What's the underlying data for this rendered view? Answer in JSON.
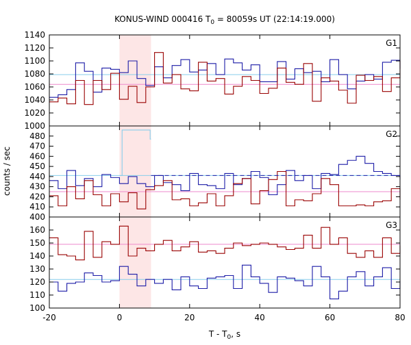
{
  "chart_data": {
    "type": "line",
    "title": "KONUS-WIND 000416 T",
    "title_sub": "0",
    "title_rest": " = 80059s UT (22:14:19.000)",
    "xlabel": "T - T",
    "xlabel_sub": "0",
    "xlabel_rest": ", s",
    "ylabel": "counts / sec",
    "xlim": [
      -20,
      80
    ],
    "xticks": [
      -20,
      0,
      20,
      40,
      60,
      80
    ],
    "highlight_x": [
      0,
      9
    ],
    "colors": {
      "blue": "#1a1aa6",
      "red": "#990000",
      "blue_bg": "#87ceeb",
      "red_bg": "#ee88cc",
      "highlight": "#fde6e6"
    },
    "panels": [
      {
        "label": "G1",
        "ylim": [
          1000,
          1140
        ],
        "yticks": [
          1000,
          1020,
          1040,
          1060,
          1080,
          1100,
          1120,
          1140
        ],
        "blue_bg": 1079,
        "red_bg": 1064,
        "series": [
          {
            "color": "blue",
            "x": [
              -20,
              -17.5,
              -15,
              -12.5,
              -10,
              -7.5,
              -5,
              -2.5,
              0,
              2.5,
              5,
              7.5,
              10,
              12.5,
              15,
              17.5,
              20,
              22.5,
              25,
              27.5,
              30,
              32.5,
              35,
              37.5,
              40,
              42.5,
              45,
              47.5,
              50,
              52.5,
              55,
              57.5,
              60,
              62.5,
              65,
              67.5,
              70,
              72.5,
              75,
              77.5,
              80
            ],
            "y": [
              1044,
              1048,
              1056,
              1097,
              1084,
              1052,
              1089,
              1087,
              1082,
              1100,
              1073,
              1062,
              1091,
              1074,
              1093,
              1102,
              1083,
              1086,
              1096,
              1079,
              1103,
              1097,
              1086,
              1094,
              1068,
              1068,
              1099,
              1072,
              1088,
              1082,
              1084,
              1068,
              1102,
              1079,
              1057,
              1069,
              1079,
              1072,
              1098,
              1101,
              1088
            ]
          },
          {
            "color": "red",
            "x": [
              -20,
              -17.5,
              -15,
              -12.5,
              -10,
              -7.5,
              -5,
              -2.5,
              0,
              2.5,
              5,
              7.5,
              10,
              12.5,
              15,
              17.5,
              20,
              22.5,
              25,
              27.5,
              30,
              32.5,
              35,
              37.5,
              40,
              42.5,
              45,
              47.5,
              50,
              52.5,
              55,
              57.5,
              60,
              62.5,
              65,
              67.5,
              70,
              72.5,
              75,
              77.5,
              80
            ],
            "y": [
              1037,
              1043,
              1034,
              1070,
              1033,
              1070,
              1056,
              1081,
              1041,
              1061,
              1036,
              1060,
              1113,
              1066,
              1079,
              1057,
              1054,
              1098,
              1069,
              1073,
              1049,
              1061,
              1076,
              1070,
              1050,
              1058,
              1089,
              1067,
              1064,
              1096,
              1038,
              1074,
              1069,
              1055,
              1035,
              1078,
              1070,
              1076,
              1053,
              1074,
              1100
            ]
          }
        ]
      },
      {
        "label": "G2",
        "ylim": [
          400,
          490
        ],
        "yticks": [
          400,
          410,
          420,
          430,
          440,
          450,
          460,
          470,
          480
        ],
        "blue_bg": 441,
        "red_bg": 425,
        "series": [
          {
            "color": "blue",
            "x": [
              -20,
              -17.5,
              -15,
              -12.5,
              -10,
              -7.5,
              -5,
              -2.5,
              0,
              2.5,
              5,
              7.5,
              10,
              12.5,
              15,
              17.5,
              20,
              22.5,
              25,
              27.5,
              30,
              32.5,
              35,
              37.5,
              40,
              42.5,
              45,
              47.5,
              50,
              52.5,
              55,
              57.5,
              60,
              62.5,
              65,
              67.5,
              70,
              72.5,
              75,
              77.5,
              80
            ],
            "y": [
              436,
              428,
              446,
              431,
              438,
              430,
              442,
              439,
              433,
              440,
              433,
              430,
              441,
              434,
              432,
              426,
              443,
              432,
              431,
              428,
              443,
              432,
              438,
              445,
              439,
              422,
              432,
              446,
              436,
              441,
              428,
              443,
              442,
              452,
              456,
              460,
              453,
              445,
              443,
              441,
              437
            ]
          },
          {
            "color": "red",
            "x": [
              -20,
              -17.5,
              -15,
              -12.5,
              -10,
              -7.5,
              -5,
              -2.5,
              0,
              2.5,
              5,
              7.5,
              10,
              12.5,
              15,
              17.5,
              20,
              22.5,
              25,
              27.5,
              30,
              32.5,
              35,
              37.5,
              40,
              42.5,
              45,
              47.5,
              50,
              52.5,
              55,
              57.5,
              60,
              62.5,
              65,
              67.5,
              70,
              72.5,
              75,
              77.5,
              80
            ],
            "y": [
              421,
              411,
              430,
              418,
              436,
              422,
              411,
              423,
              415,
              424,
              408,
              427,
              431,
              436,
              417,
              418,
              411,
              414,
              423,
              411,
              421,
              433,
              438,
              413,
              426,
              437,
              445,
              411,
              417,
              416,
              423,
              438,
              432,
              411,
              411,
              412,
              411,
              415,
              416,
              428,
              417
            ]
          },
          {
            "color": "blue",
            "x": [
              0,
              0.75,
              8.75,
              9
            ],
            "y": [
              441,
              486,
              477,
              477
            ],
            "band": "light"
          }
        ]
      },
      {
        "label": "G3",
        "ylim": [
          100,
          170
        ],
        "yticks": [
          100,
          110,
          120,
          130,
          140,
          150,
          160
        ],
        "blue_bg": 122,
        "red_bg": 149,
        "series": [
          {
            "color": "blue",
            "x": [
              -20,
              -17.5,
              -15,
              -12.5,
              -10,
              -7.5,
              -5,
              -2.5,
              0,
              2.5,
              5,
              7.5,
              10,
              12.5,
              15,
              17.5,
              20,
              22.5,
              25,
              27.5,
              30,
              32.5,
              35,
              37.5,
              40,
              42.5,
              45,
              47.5,
              50,
              52.5,
              55,
              57.5,
              60,
              62.5,
              65,
              67.5,
              70,
              72.5,
              75,
              77.5,
              80
            ],
            "y": [
              120,
              113,
              119,
              120,
              127,
              125,
              120,
              121,
              132,
              126,
              117,
              122,
              119,
              122,
              114,
              124,
              117,
              115,
              123,
              124,
              125,
              115,
              133,
              124,
              119,
              112,
              124,
              123,
              121,
              117,
              132,
              124,
              107,
              113,
              124,
              128,
              117,
              124,
              131,
              115,
              121
            ]
          },
          {
            "color": "red",
            "x": [
              -20,
              -17.5,
              -15,
              -12.5,
              -10,
              -7.5,
              -5,
              -2.5,
              0,
              2.5,
              5,
              7.5,
              10,
              12.5,
              15,
              17.5,
              20,
              22.5,
              25,
              27.5,
              30,
              32.5,
              35,
              37.5,
              40,
              42.5,
              45,
              47.5,
              50,
              52.5,
              55,
              57.5,
              60,
              62.5,
              65,
              67.5,
              70,
              72.5,
              75,
              77.5,
              80
            ],
            "y": [
              154,
              141,
              140,
              137,
              159,
              139,
              151,
              149,
              163,
              140,
              146,
              144,
              149,
              152,
              144,
              147,
              151,
              143,
              144,
              142,
              146,
              150,
              148,
              149,
              150,
              149,
              147,
              145,
              146,
              156,
              146,
              162,
              149,
              154,
              142,
              139,
              144,
              139,
              154,
              142,
              148
            ]
          }
        ]
      }
    ]
  }
}
